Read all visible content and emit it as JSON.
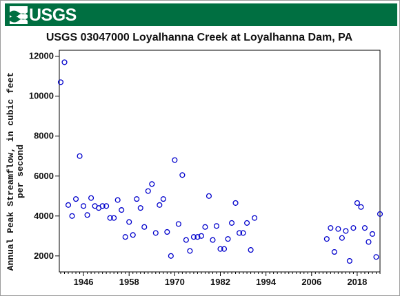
{
  "header": {
    "logo_text": "USGS",
    "logo_icon": "usgs-wave-icon",
    "banner_color": "#006f41"
  },
  "chart_data": {
    "type": "scatter",
    "title": "USGS 03047000 Loyalhanna Creek at Loyalhanna Dam, PA",
    "xlabel": "",
    "ylabel_lines": [
      "Annual Peak Streamflow, in cubic feet",
      "per second"
    ],
    "xlim": [
      1940,
      2024
    ],
    "ylim": [
      1200,
      12300
    ],
    "x_ticks": [
      1946,
      1958,
      1970,
      1982,
      1994,
      2006,
      2018
    ],
    "y_ticks": [
      2000,
      4000,
      6000,
      8000,
      10000,
      12000
    ],
    "grid": false,
    "marker": "open-circle",
    "marker_color": "#0000cc",
    "series": [
      {
        "points": [
          [
            1940,
            10700
          ],
          [
            1941,
            11700
          ],
          [
            1942,
            4550
          ],
          [
            1943,
            4000
          ],
          [
            1944,
            4850
          ],
          [
            1945,
            7000
          ],
          [
            1946,
            4500
          ],
          [
            1947,
            4050
          ],
          [
            1948,
            4900
          ],
          [
            1949,
            4500
          ],
          [
            1950,
            4400
          ],
          [
            1951,
            4500
          ],
          [
            1952,
            4500
          ],
          [
            1953,
            3900
          ],
          [
            1954,
            3900
          ],
          [
            1955,
            4800
          ],
          [
            1956,
            4300
          ],
          [
            1957,
            2950
          ],
          [
            1958,
            3700
          ],
          [
            1959,
            3050
          ],
          [
            1960,
            4850
          ],
          [
            1961,
            4400
          ],
          [
            1962,
            3450
          ],
          [
            1963,
            5250
          ],
          [
            1964,
            5600
          ],
          [
            1965,
            3150
          ],
          [
            1966,
            4550
          ],
          [
            1967,
            4850
          ],
          [
            1968,
            3200
          ],
          [
            1969,
            2000
          ],
          [
            1970,
            6800
          ],
          [
            1971,
            3600
          ],
          [
            1972,
            6050
          ],
          [
            1973,
            2800
          ],
          [
            1974,
            2250
          ],
          [
            1975,
            2950
          ],
          [
            1976,
            2950
          ],
          [
            1977,
            3000
          ],
          [
            1978,
            3450
          ],
          [
            1979,
            5000
          ],
          [
            1980,
            2800
          ],
          [
            1981,
            3500
          ],
          [
            1982,
            2350
          ],
          [
            1983,
            2350
          ],
          [
            1984,
            2850
          ],
          [
            1985,
            3650
          ],
          [
            1986,
            4650
          ],
          [
            1987,
            3150
          ],
          [
            1988,
            3150
          ],
          [
            1989,
            3650
          ],
          [
            1990,
            2300
          ],
          [
            1991,
            3900
          ],
          [
            2010,
            2850
          ],
          [
            2011,
            3400
          ],
          [
            2012,
            2200
          ],
          [
            2013,
            3350
          ],
          [
            2014,
            2900
          ],
          [
            2015,
            3250
          ],
          [
            2016,
            1750
          ],
          [
            2017,
            3400
          ],
          [
            2018,
            4650
          ],
          [
            2019,
            4450
          ],
          [
            2020,
            3400
          ],
          [
            2021,
            2700
          ],
          [
            2022,
            3100
          ],
          [
            2023,
            1950
          ],
          [
            2024,
            4100
          ]
        ]
      }
    ]
  }
}
